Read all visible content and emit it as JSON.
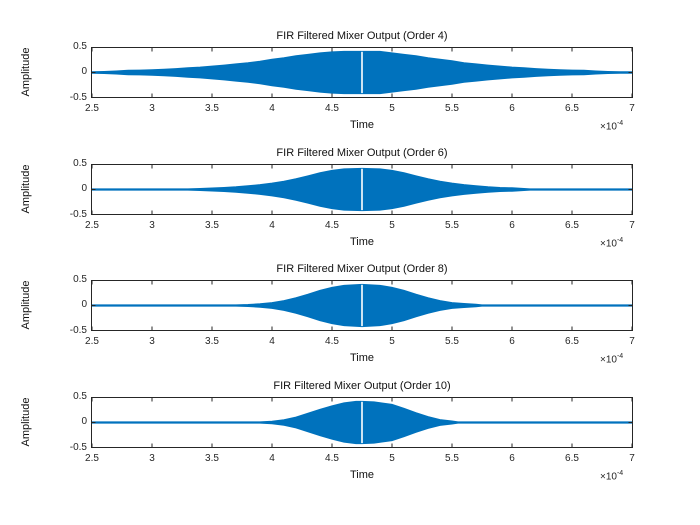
{
  "figure": {
    "background": "#ffffff",
    "accent_color": "#0072BD",
    "axis_color": "#262626"
  },
  "axis": {
    "xlabel": "Time",
    "ylabel": "Amplitude",
    "x_tick_labels": [
      "2.5",
      "3",
      "3.5",
      "4",
      "4.5",
      "5",
      "5.5",
      "6",
      "6.5",
      "7"
    ],
    "y_tick_labels": [
      "0.5",
      "0",
      "-0.5"
    ],
    "exponent_base": "×10",
    "exponent_power": "-4"
  },
  "subplots": [
    {
      "title": "FIR Filtered Mixer Output (Order 4)"
    },
    {
      "title": "FIR Filtered Mixer Output (Order 6)"
    },
    {
      "title": "FIR Filtered Mixer Output (Order 8)"
    },
    {
      "title": "FIR Filtered Mixer Output (Order 10)"
    }
  ],
  "chart_data": [
    {
      "type": "line",
      "title": "FIR Filtered Mixer Output (Order 4)",
      "xlabel": "Time",
      "ylabel": "Amplitude",
      "x_units": "seconds, axis labels scaled by 1e-4",
      "xlim": [
        2.5,
        7
      ],
      "ylim": [
        -0.5,
        0.5
      ],
      "x_ticks": [
        2.5,
        3,
        3.5,
        4,
        4.5,
        5,
        5.5,
        6,
        6.5,
        7
      ],
      "y_ticks": [
        -0.5,
        0,
        0.5
      ],
      "line_color": "#0072BD",
      "signal": "dense high-frequency oscillation filling the region between +envelope and -envelope",
      "notch": {
        "t": 4.75,
        "amplitude": 0.43
      },
      "envelope": [
        [
          2.5,
          0.015
        ],
        [
          2.6,
          0.02
        ],
        [
          2.7,
          0.03
        ],
        [
          2.8,
          0.045
        ],
        [
          2.9,
          0.05
        ],
        [
          3.0,
          0.055
        ],
        [
          3.1,
          0.065
        ],
        [
          3.2,
          0.08
        ],
        [
          3.3,
          0.095
        ],
        [
          3.4,
          0.11
        ],
        [
          3.5,
          0.13
        ],
        [
          3.6,
          0.15
        ],
        [
          3.7,
          0.175
        ],
        [
          3.8,
          0.2
        ],
        [
          3.9,
          0.23
        ],
        [
          4.0,
          0.27
        ],
        [
          4.1,
          0.3
        ],
        [
          4.2,
          0.34
        ],
        [
          4.3,
          0.37
        ],
        [
          4.4,
          0.4
        ],
        [
          4.5,
          0.42
        ],
        [
          4.6,
          0.43
        ],
        [
          4.75,
          0.43
        ],
        [
          4.9,
          0.43
        ],
        [
          5.0,
          0.4
        ],
        [
          5.1,
          0.37
        ],
        [
          5.2,
          0.34
        ],
        [
          5.3,
          0.3
        ],
        [
          5.4,
          0.27
        ],
        [
          5.5,
          0.24
        ],
        [
          5.6,
          0.2
        ],
        [
          5.7,
          0.175
        ],
        [
          5.8,
          0.15
        ],
        [
          5.9,
          0.13
        ],
        [
          6.0,
          0.11
        ],
        [
          6.1,
          0.095
        ],
        [
          6.2,
          0.08
        ],
        [
          6.3,
          0.065
        ],
        [
          6.4,
          0.055
        ],
        [
          6.5,
          0.05
        ],
        [
          6.6,
          0.045
        ],
        [
          6.7,
          0.03
        ],
        [
          6.8,
          0.02
        ],
        [
          6.9,
          0.015
        ],
        [
          7.0,
          0.015
        ]
      ]
    },
    {
      "type": "line",
      "title": "FIR Filtered Mixer Output (Order 6)",
      "xlabel": "Time",
      "ylabel": "Amplitude",
      "x_units": "seconds, axis labels scaled by 1e-4",
      "xlim": [
        2.5,
        7
      ],
      "ylim": [
        -0.5,
        0.5
      ],
      "x_ticks": [
        2.5,
        3,
        3.5,
        4,
        4.5,
        5,
        5.5,
        6,
        6.5,
        7
      ],
      "y_ticks": [
        -0.5,
        0,
        0.5
      ],
      "line_color": "#0072BD",
      "signal": "dense high-frequency oscillation filling the region between +envelope and -envelope",
      "notch": {
        "t": 4.75,
        "amplitude": 0.43
      },
      "envelope": [
        [
          2.5,
          0.012
        ],
        [
          3.3,
          0.012
        ],
        [
          3.4,
          0.02
        ],
        [
          3.5,
          0.03
        ],
        [
          3.6,
          0.04
        ],
        [
          3.7,
          0.055
        ],
        [
          3.8,
          0.075
        ],
        [
          3.9,
          0.1
        ],
        [
          4.0,
          0.13
        ],
        [
          4.1,
          0.17
        ],
        [
          4.2,
          0.22
        ],
        [
          4.3,
          0.28
        ],
        [
          4.4,
          0.34
        ],
        [
          4.5,
          0.39
        ],
        [
          4.6,
          0.42
        ],
        [
          4.75,
          0.43
        ],
        [
          4.9,
          0.42
        ],
        [
          5.0,
          0.39
        ],
        [
          5.1,
          0.34
        ],
        [
          5.2,
          0.28
        ],
        [
          5.3,
          0.22
        ],
        [
          5.4,
          0.17
        ],
        [
          5.5,
          0.13
        ],
        [
          5.6,
          0.1
        ],
        [
          5.7,
          0.075
        ],
        [
          5.8,
          0.055
        ],
        [
          5.9,
          0.04
        ],
        [
          6.0,
          0.035
        ],
        [
          6.1,
          0.02
        ],
        [
          6.15,
          0.012
        ],
        [
          7.0,
          0.012
        ]
      ]
    },
    {
      "type": "line",
      "title": "FIR Filtered Mixer Output (Order 8)",
      "xlabel": "Time",
      "ylabel": "Amplitude",
      "x_units": "seconds, axis labels scaled by 1e-4",
      "xlim": [
        2.5,
        7
      ],
      "ylim": [
        -0.5,
        0.5
      ],
      "x_ticks": [
        2.5,
        3,
        3.5,
        4,
        4.5,
        5,
        5.5,
        6,
        6.5,
        7
      ],
      "y_ticks": [
        -0.5,
        0,
        0.5
      ],
      "line_color": "#0072BD",
      "signal": "dense high-frequency oscillation filling the region between +envelope and -envelope",
      "notch": {
        "t": 4.75,
        "amplitude": 0.43
      },
      "envelope": [
        [
          2.5,
          0.012
        ],
        [
          3.7,
          0.012
        ],
        [
          3.8,
          0.02
        ],
        [
          3.9,
          0.035
        ],
        [
          4.0,
          0.06
        ],
        [
          4.1,
          0.1
        ],
        [
          4.2,
          0.16
        ],
        [
          4.3,
          0.23
        ],
        [
          4.4,
          0.31
        ],
        [
          4.5,
          0.37
        ],
        [
          4.6,
          0.41
        ],
        [
          4.75,
          0.43
        ],
        [
          4.9,
          0.41
        ],
        [
          5.0,
          0.37
        ],
        [
          5.1,
          0.31
        ],
        [
          5.2,
          0.23
        ],
        [
          5.3,
          0.16
        ],
        [
          5.4,
          0.1
        ],
        [
          5.5,
          0.06
        ],
        [
          5.6,
          0.04
        ],
        [
          5.7,
          0.025
        ],
        [
          5.75,
          0.012
        ],
        [
          7.0,
          0.012
        ]
      ]
    },
    {
      "type": "line",
      "title": "FIR Filtered Mixer Output (Order 10)",
      "xlabel": "Time",
      "ylabel": "Amplitude",
      "x_units": "seconds, axis labels scaled by 1e-4",
      "xlim": [
        2.5,
        7
      ],
      "ylim": [
        -0.5,
        0.5
      ],
      "x_ticks": [
        2.5,
        3,
        3.5,
        4,
        4.5,
        5,
        5.5,
        6,
        6.5,
        7
      ],
      "y_ticks": [
        -0.5,
        0,
        0.5
      ],
      "line_color": "#0072BD",
      "signal": "dense high-frequency oscillation filling the region between +envelope and -envelope",
      "notch": {
        "t": 4.75,
        "amplitude": 0.43
      },
      "envelope": [
        [
          2.5,
          0.012
        ],
        [
          3.9,
          0.012
        ],
        [
          4.0,
          0.025
        ],
        [
          4.1,
          0.055
        ],
        [
          4.2,
          0.11
        ],
        [
          4.3,
          0.19
        ],
        [
          4.4,
          0.27
        ],
        [
          4.5,
          0.34
        ],
        [
          4.6,
          0.4
        ],
        [
          4.7,
          0.43
        ],
        [
          4.75,
          0.43
        ],
        [
          4.85,
          0.42
        ],
        [
          5.0,
          0.37
        ],
        [
          5.1,
          0.29
        ],
        [
          5.2,
          0.2
        ],
        [
          5.3,
          0.12
        ],
        [
          5.4,
          0.06
        ],
        [
          5.5,
          0.03
        ],
        [
          5.55,
          0.012
        ],
        [
          7.0,
          0.012
        ]
      ]
    }
  ]
}
